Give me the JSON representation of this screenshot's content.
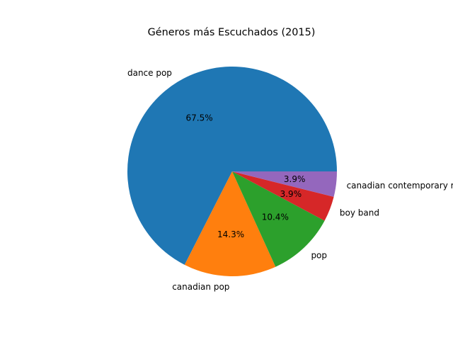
{
  "chart_data": {
    "type": "pie",
    "title": "Géneros más Escuchados (2015)",
    "start_angle_deg": 0,
    "direction": "counterclockwise",
    "slices": [
      {
        "label": "dance pop",
        "value": 67.5,
        "pct_label": "67.5%",
        "color": "#1f77b4"
      },
      {
        "label": "canadian pop",
        "value": 14.3,
        "pct_label": "14.3%",
        "color": "#ff7f0e"
      },
      {
        "label": "pop",
        "value": 10.4,
        "pct_label": "10.4%",
        "color": "#2ca02c"
      },
      {
        "label": "boy band",
        "value": 3.9,
        "pct_label": "3.9%",
        "color": "#d62728"
      },
      {
        "label": "canadian contemporary r&b",
        "value": 3.9,
        "pct_label": "3.9%",
        "color": "#9467bd"
      }
    ]
  }
}
